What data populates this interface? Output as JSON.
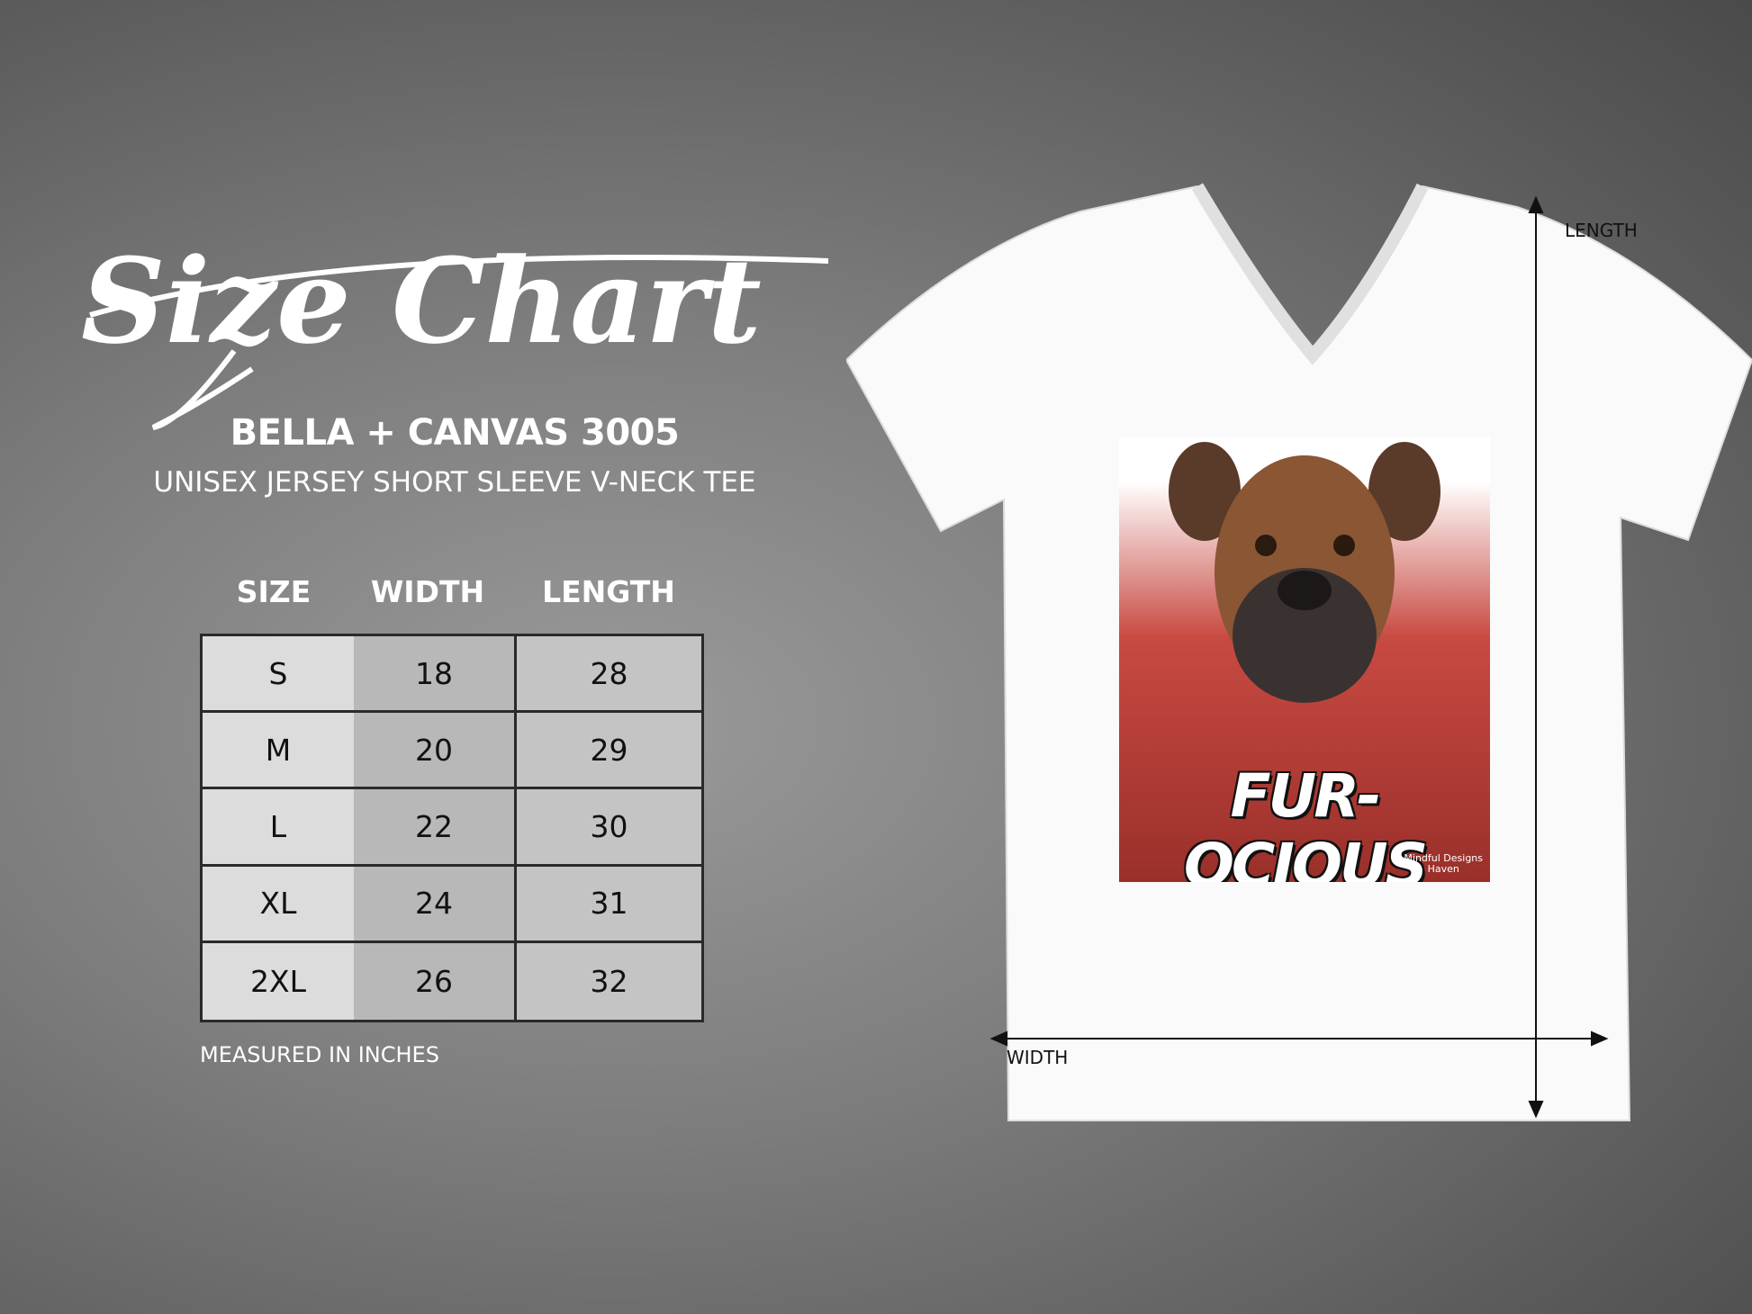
{
  "header": {
    "title": "Size Chart",
    "brand": "BELLA + CANVAS 3005",
    "subtitle": "UNISEX JERSEY SHORT SLEEVE V-NECK TEE"
  },
  "table": {
    "columns": [
      "SIZE",
      "WIDTH",
      "LENGTH"
    ],
    "rows": [
      [
        "S",
        "18",
        "28"
      ],
      [
        "M",
        "20",
        "29"
      ],
      [
        "L",
        "22",
        "30"
      ],
      [
        "XL",
        "24",
        "31"
      ],
      [
        "2XL",
        "26",
        "32"
      ]
    ],
    "note": "MEASURED IN INCHES"
  },
  "shirt": {
    "color": "#ffffff",
    "design_text": "FUR-OCIOUS",
    "watermark_line1": "Mindful Designs",
    "watermark_line2": "Haven",
    "length_label": "LENGTH",
    "width_label": "WIDTH"
  }
}
